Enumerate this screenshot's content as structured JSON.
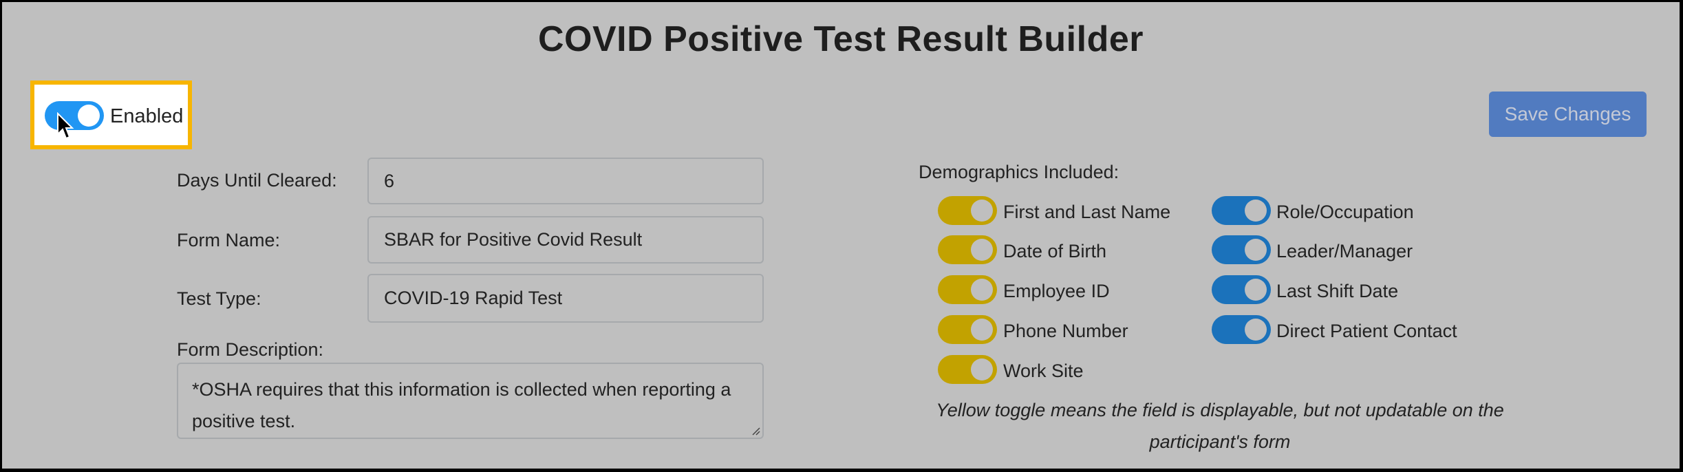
{
  "title": "COVID Positive Test Result Builder",
  "enabled_toggle": {
    "label": "Enabled",
    "on": true,
    "color": "#2196f3"
  },
  "save_button": {
    "label": "Save Changes",
    "color": "#517bc0"
  },
  "fields": {
    "days_until_cleared": {
      "label": "Days Until Cleared:",
      "value": "6"
    },
    "form_name": {
      "label": "Form Name:",
      "value": "SBAR for Positive Covid Result"
    },
    "test_type": {
      "label": "Test Type:",
      "value": "COVID-19 Rapid Test"
    },
    "form_description": {
      "label": "Form Description:",
      "value": "*OSHA requires that this information is collected when reporting a positive test."
    }
  },
  "demographics": {
    "label": "Demographics Included:",
    "colors": {
      "yellow": "#c2a200",
      "blue": "#1b72bb"
    },
    "left": [
      {
        "label": "First and Last Name",
        "on": true,
        "state": "yellow"
      },
      {
        "label": "Date of Birth",
        "on": true,
        "state": "yellow"
      },
      {
        "label": "Employee ID",
        "on": true,
        "state": "yellow"
      },
      {
        "label": "Phone Number",
        "on": true,
        "state": "yellow"
      },
      {
        "label": "Work Site",
        "on": true,
        "state": "yellow"
      }
    ],
    "right": [
      {
        "label": "Role/Occupation",
        "on": true,
        "state": "blue"
      },
      {
        "label": "Leader/Manager",
        "on": true,
        "state": "blue"
      },
      {
        "label": "Last Shift Date",
        "on": true,
        "state": "blue"
      },
      {
        "label": "Direct Patient Contact",
        "on": true,
        "state": "blue"
      }
    ],
    "note": "Yellow toggle means the field is displayable, but not updatable on the participant's form"
  }
}
